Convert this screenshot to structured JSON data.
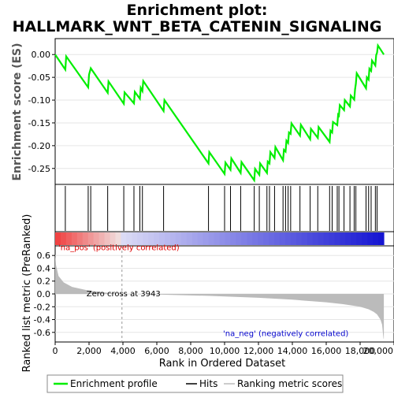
{
  "chart_data": {
    "type": "line",
    "title_line1": "Enrichment plot:",
    "title_line2": "HALLMARK_WNT_BETA_CATENIN_SIGNALING",
    "es_panel": {
      "ylabel": "Enrichment score (ES)",
      "ylim": [
        -0.285,
        0.035
      ],
      "yticks": [
        0.0,
        -0.05,
        -0.1,
        -0.15,
        -0.2,
        -0.25
      ],
      "ytick_labels": [
        "0.00",
        "-0.05",
        "-0.10",
        "-0.15",
        "-0.20",
        "-0.25"
      ],
      "series": [
        {
          "name": "Enrichment profile",
          "color": "#00ee00",
          "x": [
            0,
            600,
            650,
            1950,
            2000,
            2100,
            3100,
            3150,
            4050,
            4100,
            4650,
            4700,
            5000,
            5050,
            5150,
            5200,
            6400,
            6450,
            9050,
            9100,
            10000,
            10050,
            10350,
            10400,
            10950,
            11000,
            11750,
            11800,
            12050,
            12100,
            12500,
            12550,
            12650,
            12700,
            12950,
            13000,
            13450,
            13500,
            13600,
            13650,
            13750,
            13800,
            13900,
            13950,
            14450,
            14500,
            15050,
            15100,
            15500,
            15550,
            16200,
            16250,
            16350,
            16400,
            16650,
            16700,
            16750,
            16800,
            17050,
            17100,
            17400,
            17450,
            17650,
            17700,
            17750,
            17800,
            18350,
            18400,
            18500,
            18550,
            18650,
            18700,
            18900,
            18950,
            19000,
            19050,
            19400
          ],
          "y": [
            0.0,
            -0.033,
            -0.004,
            -0.072,
            -0.044,
            -0.03,
            -0.084,
            -0.059,
            -0.108,
            -0.083,
            -0.107,
            -0.082,
            -0.097,
            -0.073,
            -0.08,
            -0.058,
            -0.124,
            -0.1,
            -0.239,
            -0.214,
            -0.262,
            -0.237,
            -0.253,
            -0.228,
            -0.26,
            -0.236,
            -0.276,
            -0.251,
            -0.264,
            -0.239,
            -0.26,
            -0.235,
            -0.239,
            -0.214,
            -0.227,
            -0.203,
            -0.232,
            -0.209,
            -0.213,
            -0.189,
            -0.194,
            -0.171,
            -0.174,
            -0.151,
            -0.178,
            -0.154,
            -0.186,
            -0.163,
            -0.183,
            -0.159,
            -0.192,
            -0.167,
            -0.171,
            -0.148,
            -0.155,
            -0.132,
            -0.134,
            -0.111,
            -0.122,
            -0.1,
            -0.114,
            -0.09,
            -0.099,
            -0.076,
            -0.064,
            -0.041,
            -0.074,
            -0.05,
            -0.055,
            -0.031,
            -0.036,
            -0.013,
            -0.024,
            -0.001,
            0.004,
            0.02,
            0.0
          ]
        }
      ]
    },
    "hits": {
      "name": "Hits",
      "positions": [
        600,
        1950,
        2100,
        3100,
        4050,
        4650,
        5000,
        5150,
        6400,
        9050,
        10000,
        10350,
        10950,
        11750,
        12050,
        12500,
        12650,
        12950,
        13450,
        13600,
        13750,
        13900,
        14450,
        15050,
        15500,
        16200,
        16350,
        16650,
        16750,
        17050,
        17400,
        17650,
        17750,
        18350,
        18500,
        18650,
        18900,
        19000
      ]
    },
    "ranked_metric": {
      "name": "Ranking metric scores",
      "ylabel": "Ranked list metric (PreRanked)",
      "ylim": [
        -0.75,
        0.75
      ],
      "yticks": [
        0.6,
        0.4,
        0.2,
        0.0,
        -0.2,
        -0.4,
        -0.6
      ],
      "ytick_labels": [
        "0.6",
        "0.4",
        "0.2",
        "0.0",
        "-0.2",
        "-0.4",
        "-0.6"
      ],
      "x": [
        0,
        50,
        200,
        500,
        1000,
        2000,
        3000,
        3943,
        6000,
        9000,
        12000,
        14000,
        16000,
        17000,
        18000,
        18500,
        18800,
        19000,
        19200,
        19300,
        19380,
        19400
      ],
      "y": [
        0.62,
        0.45,
        0.28,
        0.18,
        0.11,
        0.05,
        0.02,
        0.0,
        -0.01,
        -0.03,
        -0.06,
        -0.09,
        -0.13,
        -0.16,
        -0.2,
        -0.24,
        -0.28,
        -0.32,
        -0.4,
        -0.48,
        -0.7,
        -0.7
      ],
      "zero_cross_label": "Zero cross at 3943",
      "zero_cross": 3943,
      "pos_label": "'na_pos' (positively correlated)",
      "neg_label": "'na_neg' (negatively correlated)"
    },
    "xaxis": {
      "xlabel": "Rank in Ordered Dataset",
      "xlim": [
        0,
        20000
      ],
      "xmax_data": 19400,
      "xticks": [
        0,
        2000,
        4000,
        6000,
        8000,
        10000,
        12000,
        14000,
        16000,
        18000,
        20000
      ],
      "xtick_labels": [
        "0",
        "2,000",
        "4,000",
        "6,000",
        "8,000",
        "10,000",
        "12,000",
        "14,000",
        "16,000",
        "18,000",
        "20,000"
      ]
    },
    "legend": {
      "placement": "bottom",
      "entries": [
        {
          "label": "Enrichment profile",
          "color": "#00ee00"
        },
        {
          "label": "Hits",
          "color": "#000000"
        },
        {
          "label": "Ranking metric scores",
          "color": "#bbbbbb"
        }
      ]
    },
    "colors": {
      "es_line": "#00ee00",
      "hits": "#000000",
      "metric_fill": "#bbbbbb",
      "pos_label": "#dd0000",
      "neg_label": "#0000cc",
      "zero_cross_line": "#999999"
    }
  }
}
